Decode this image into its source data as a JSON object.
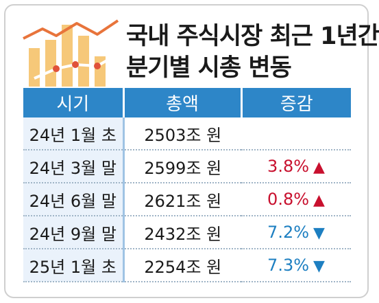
{
  "title_lines": [
    "국내 주식시장 최근 1년간",
    "분기별 시총 변동"
  ],
  "colors": {
    "header_bg": "#2d86c8",
    "header_text": "#ffffff",
    "period_bg": "#eaf2fb",
    "up": "#c8102e",
    "down": "#1d7fc1",
    "logo_bar": "#f6c879",
    "logo_line": "#e8743b",
    "logo_dot": "#e0523a"
  },
  "chart_data": {
    "type": "table",
    "columns": [
      "시기",
      "총액",
      "증감"
    ],
    "rows": [
      {
        "period": "24년 1월 초",
        "total": "2503조 원",
        "change": "",
        "direction": ""
      },
      {
        "period": "24년 3월 말",
        "total": "2599조 원",
        "change": "3.8%",
        "direction": "up",
        "arrow": "▲"
      },
      {
        "period": "24년 6월 말",
        "total": "2621조 원",
        "change": "0.8%",
        "direction": "up",
        "arrow": "▲"
      },
      {
        "period": "24년 9월 말",
        "total": "2432조 원",
        "change": "7.2%",
        "direction": "down",
        "arrow": "▼"
      },
      {
        "period": "25년 1월 초",
        "total": "2254조 원",
        "change": "7.3%",
        "direction": "down",
        "arrow": "▼"
      }
    ]
  }
}
